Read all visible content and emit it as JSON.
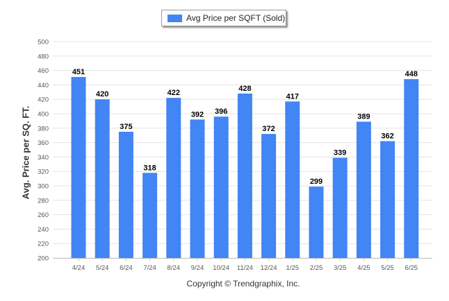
{
  "legend": {
    "label": "Avg Price per SQFT (Sold)",
    "swatch_color": "#4285f4"
  },
  "footer": {
    "copyright": "Copyright © Trendgraphix, Inc."
  },
  "colors": {
    "bar": "#4285f4",
    "grid": "#e3e3e3",
    "axis": "#c0c0c0",
    "tick_text": "#555555",
    "label_text": "#000000"
  },
  "chart_data": {
    "type": "bar",
    "ylabel": "Avg. Price per SQ. FT.",
    "xlabel": "",
    "categories": [
      "4/24",
      "5/24",
      "6/24",
      "7/24",
      "8/24",
      "9/24",
      "10/24",
      "11/24",
      "12/24",
      "1/25",
      "2/25",
      "3/25",
      "4/25",
      "5/25",
      "6/25"
    ],
    "series": [
      {
        "name": "Avg Price per SQFT (Sold)",
        "values": [
          451,
          420,
          375,
          318,
          422,
          392,
          396,
          428,
          372,
          417,
          299,
          339,
          389,
          362,
          448
        ]
      }
    ],
    "ylim": [
      200,
      500
    ],
    "yticks": [
      200,
      220,
      240,
      260,
      280,
      300,
      320,
      340,
      360,
      380,
      400,
      420,
      440,
      460,
      480,
      500
    ],
    "grid": true,
    "legend_position": "top-center",
    "data_labels": true
  }
}
